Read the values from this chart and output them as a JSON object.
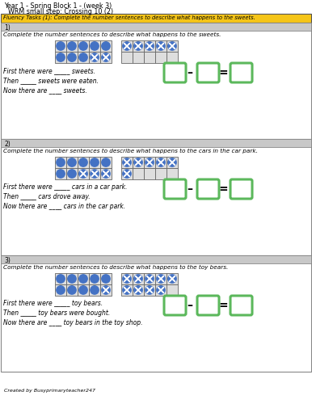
{
  "title_line1": "Year 1 - Spring Block 1 - (week 3)",
  "title_line2": "WRM small step: Crossing 10 (2)",
  "fluency_header": "Fluency Tasks (1): Complete the number sentences to describe what happens to the sweets.",
  "header_bg": "#F5C518",
  "section_label_bg": "#C8C8C8",
  "border_color": "#888888",
  "green_box_color": "#5CB85C",
  "blue_color": "#4472C4",
  "sections": [
    {
      "label": "1)",
      "instruction": "Complete the number sentences to describe what happens to the sweets.",
      "grid1_total": 10,
      "grid1_crossed_indices": [
        8,
        9
      ],
      "grid2_total": 5,
      "grid2_crossed_indices": [
        0,
        1,
        2,
        3,
        4
      ],
      "line1": "First there were _____ sweets.",
      "line2": "Then _____ sweets were eaten.",
      "line3": "Now there are ____ sweets."
    },
    {
      "label": "2)",
      "instruction": "Complete the number sentences to describe what happens to the cars in the car park.",
      "grid1_total": 10,
      "grid1_crossed_indices": [
        7,
        8,
        9
      ],
      "grid2_total": 6,
      "grid2_crossed_indices": [
        0,
        1,
        2,
        3,
        4,
        5
      ],
      "line1": "First there were _____ cars in a car park.",
      "line2": "Then _____ cars drove away.",
      "line3": "Now there are ____ cars in the car park."
    },
    {
      "label": "3)",
      "instruction": "Complete the number sentences to describe what happens to the toy bears.",
      "grid1_total": 10,
      "grid1_crossed_indices": [
        9
      ],
      "grid2_total": 9,
      "grid2_crossed_indices": [
        0,
        1,
        2,
        3,
        4,
        5,
        6,
        7,
        8
      ],
      "line1": "First there were _____ toy bears.",
      "line2": "Then _____ toy bears were bought.",
      "line3": "Now there are ____ toy bears in the toy shop."
    }
  ],
  "footer": "Created by Busyprimaryteacher247"
}
